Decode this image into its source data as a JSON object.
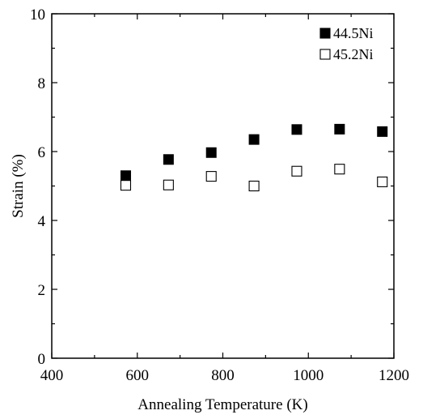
{
  "chart_data": {
    "type": "scatter",
    "xlabel": "Annealing Temperature (K)",
    "ylabel": "Strain  (%)",
    "xlim": [
      400,
      1200
    ],
    "ylim": [
      0,
      10
    ],
    "x_ticks": [
      "400",
      "600",
      "800",
      "1000",
      "1200"
    ],
    "y_ticks": [
      "0",
      "2",
      "4",
      "6",
      "8",
      "10"
    ],
    "grid": false,
    "legend_position": "top-right",
    "series": [
      {
        "name": "44.5Ni",
        "marker": "filled-square",
        "color": "#000000",
        "x": [
          573,
          673,
          773,
          873,
          973,
          1073,
          1173
        ],
        "y": [
          5.3,
          5.77,
          5.97,
          6.35,
          6.64,
          6.65,
          6.58
        ]
      },
      {
        "name": "45.2Ni",
        "marker": "open-square",
        "color": "#000000",
        "x": [
          573,
          673,
          773,
          873,
          973,
          1073,
          1173
        ],
        "y": [
          5.02,
          5.03,
          5.28,
          5.0,
          5.43,
          5.49,
          5.12
        ]
      }
    ]
  }
}
